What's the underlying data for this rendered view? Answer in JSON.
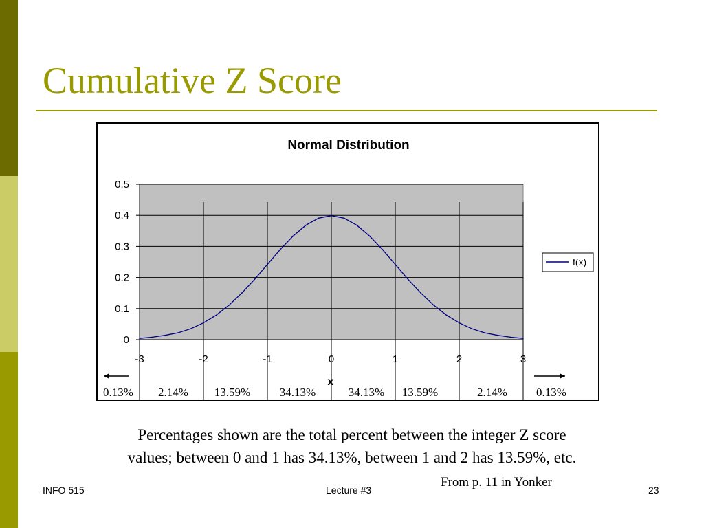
{
  "slide": {
    "title": "Cumulative Z Score",
    "caption_line1": "Percentages shown are the total percent between the integer Z score",
    "caption_line2": "values; between 0 and 1 has 34.13%, between 1 and 2 has 13.59%, etc.",
    "source": "From p. 11 in Yonker",
    "footer_left": "INFO 515",
    "footer_center": "Lecture #3",
    "page_number": "23"
  },
  "theme": {
    "title_color": "#999900",
    "plot_background": "#c0c0c0",
    "series_color": "#000080"
  },
  "chart_data": {
    "type": "line",
    "title": "Normal Distribution",
    "xlabel": "x",
    "ylabel": "",
    "xlim": [
      -3,
      3
    ],
    "ylim": [
      0,
      0.5
    ],
    "x_ticks": [
      "-3",
      "-2",
      "-1",
      "0",
      "1",
      "2",
      "3"
    ],
    "y_ticks": [
      "0",
      "0.1",
      "0.2",
      "0.3",
      "0.4",
      "0.5"
    ],
    "grid": true,
    "legend_position": "right",
    "series": [
      {
        "name": "f(x)",
        "x": [
          -3,
          -2.8,
          -2.6,
          -2.4,
          -2.2,
          -2,
          -1.8,
          -1.6,
          -1.4,
          -1.2,
          -1,
          -0.8,
          -0.6,
          -0.4,
          -0.2,
          0,
          0.2,
          0.4,
          0.6,
          0.8,
          1,
          1.2,
          1.4,
          1.6,
          1.8,
          2,
          2.2,
          2.4,
          2.6,
          2.8,
          3
        ],
        "y": [
          0.004,
          0.008,
          0.014,
          0.022,
          0.035,
          0.054,
          0.079,
          0.111,
          0.15,
          0.194,
          0.242,
          0.29,
          0.333,
          0.368,
          0.391,
          0.399,
          0.391,
          0.368,
          0.333,
          0.29,
          0.242,
          0.194,
          0.15,
          0.111,
          0.079,
          0.054,
          0.035,
          0.022,
          0.014,
          0.008,
          0.004
        ]
      }
    ],
    "annotations": {
      "percentages": [
        "0.13%",
        "2.14%",
        "13.59%",
        "34.13%",
        "34.13%",
        "13.59%",
        "2.14%",
        "0.13%"
      ],
      "tail_arrows": [
        "left",
        "right"
      ]
    }
  }
}
